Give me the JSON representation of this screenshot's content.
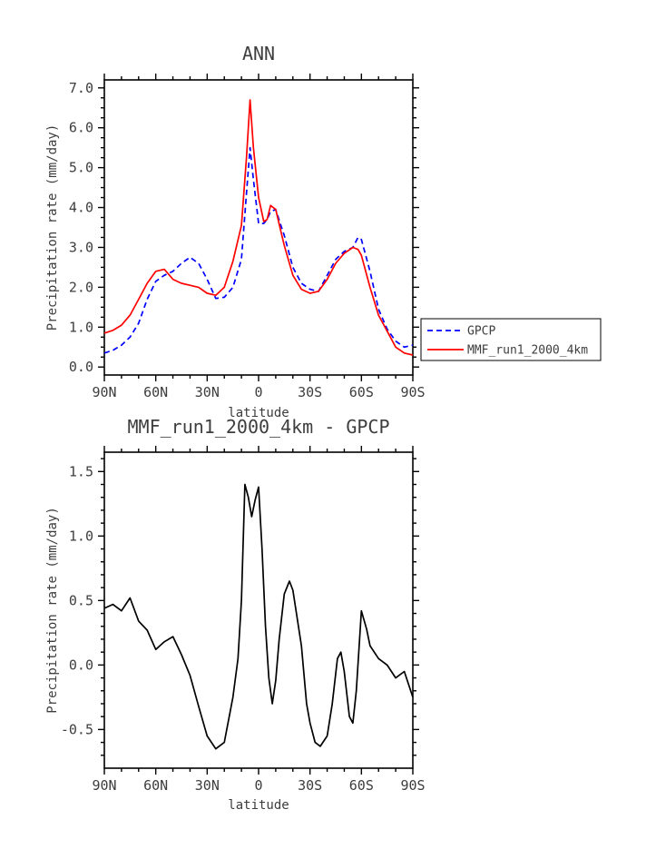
{
  "figure": {
    "background": "#ffffff",
    "text_color": "#3d3d3d",
    "axis_color": "#000000"
  },
  "chart_data": [
    {
      "id": "ann",
      "type": "line",
      "title": "ANN",
      "xlabel": "latitude",
      "ylabel": "Precipitation rate (mm/day)",
      "xlim": [
        90,
        -90
      ],
      "ylim": [
        -0.2,
        7.2
      ],
      "grid": false,
      "x_ticks": [
        {
          "v": 90,
          "label": "90N"
        },
        {
          "v": 60,
          "label": "60N"
        },
        {
          "v": 30,
          "label": "30N"
        },
        {
          "v": 0,
          "label": "0"
        },
        {
          "v": -30,
          "label": "30S"
        },
        {
          "v": -60,
          "label": "60S"
        },
        {
          "v": -90,
          "label": "90S"
        }
      ],
      "y_ticks": [
        {
          "v": 0.0,
          "label": "0.0"
        },
        {
          "v": 1.0,
          "label": "1.0"
        },
        {
          "v": 2.0,
          "label": "2.0"
        },
        {
          "v": 3.0,
          "label": "3.0"
        },
        {
          "v": 4.0,
          "label": "4.0"
        },
        {
          "v": 5.0,
          "label": "5.0"
        },
        {
          "v": 6.0,
          "label": "6.0"
        },
        {
          "v": 7.0,
          "label": "7.0"
        }
      ],
      "x_minor_step": 10,
      "y_minor_step": 0.25,
      "x": [
        90,
        85,
        80,
        75,
        70,
        65,
        60,
        55,
        50,
        45,
        40,
        35,
        30,
        25,
        20,
        15,
        10,
        7,
        5,
        3,
        0,
        -3,
        -5,
        -7,
        -10,
        -13,
        -15,
        -20,
        -25,
        -30,
        -35,
        -40,
        -45,
        -50,
        -55,
        -58,
        -60,
        -65,
        -70,
        -75,
        -80,
        -85,
        -90
      ],
      "series": [
        {
          "name": "GPCP",
          "color": "#0000ff",
          "dash": "6 4",
          "width": 1.7,
          "values": [
            0.35,
            0.42,
            0.55,
            0.75,
            1.1,
            1.7,
            2.15,
            2.3,
            2.4,
            2.6,
            2.75,
            2.6,
            2.2,
            1.72,
            1.75,
            2.0,
            2.7,
            4.4,
            5.5,
            4.7,
            3.6,
            3.6,
            3.7,
            3.9,
            3.95,
            3.55,
            3.3,
            2.5,
            2.1,
            1.95,
            1.9,
            2.3,
            2.7,
            2.9,
            3.0,
            3.25,
            3.2,
            2.4,
            1.45,
            0.95,
            0.65,
            0.5,
            0.55
          ]
        },
        {
          "name": "MMF_run1_2000_4km",
          "color": "#ff0000",
          "dash": "",
          "width": 1.7,
          "values": [
            0.85,
            0.92,
            1.05,
            1.3,
            1.7,
            2.1,
            2.4,
            2.45,
            2.2,
            2.1,
            2.05,
            2.0,
            1.85,
            1.8,
            2.0,
            2.65,
            3.55,
            5.3,
            6.7,
            5.5,
            4.25,
            3.65,
            3.7,
            4.05,
            3.95,
            3.4,
            3.05,
            2.3,
            1.95,
            1.85,
            1.9,
            2.2,
            2.6,
            2.85,
            3.0,
            2.95,
            2.8,
            2.0,
            1.3,
            0.9,
            0.5,
            0.35,
            0.3
          ]
        }
      ],
      "legend": {
        "visible": true,
        "position": "outside-right-bottom",
        "entries": [
          "GPCP",
          "MMF_run1_2000_4km"
        ]
      }
    },
    {
      "id": "diff",
      "type": "line",
      "title": "MMF_run1_2000_4km - GPCP",
      "xlabel": "latitude",
      "ylabel": "Precipitation rate (mm/day)",
      "xlim": [
        90,
        -90
      ],
      "ylim": [
        -0.8,
        1.65
      ],
      "grid": false,
      "x_ticks": [
        {
          "v": 90,
          "label": "90N"
        },
        {
          "v": 60,
          "label": "60N"
        },
        {
          "v": 30,
          "label": "30N"
        },
        {
          "v": 0,
          "label": "0"
        },
        {
          "v": -30,
          "label": "30S"
        },
        {
          "v": -60,
          "label": "60S"
        },
        {
          "v": -90,
          "label": "90S"
        }
      ],
      "y_ticks": [
        {
          "v": -0.5,
          "label": "-0.5"
        },
        {
          "v": 0.0,
          "label": "0.0"
        },
        {
          "v": 0.5,
          "label": "0.5"
        },
        {
          "v": 1.0,
          "label": "1.0"
        },
        {
          "v": 1.5,
          "label": "1.5"
        }
      ],
      "x_minor_step": 10,
      "y_minor_step": 0.1,
      "x": [
        90,
        85,
        80,
        75,
        70,
        65,
        60,
        55,
        50,
        45,
        40,
        35,
        30,
        25,
        20,
        15,
        12,
        10,
        8,
        6,
        4,
        2,
        0,
        -2,
        -4,
        -6,
        -8,
        -10,
        -12,
        -15,
        -18,
        -20,
        -25,
        -28,
        -30,
        -33,
        -36,
        -40,
        -43,
        -46,
        -48,
        -50,
        -53,
        -55,
        -57,
        -60,
        -63,
        -65,
        -70,
        -75,
        -80,
        -85,
        -90
      ],
      "series": [
        {
          "name": "MMF_run1_2000_4km - GPCP",
          "color": "#000000",
          "dash": "",
          "width": 1.7,
          "values": [
            0.44,
            0.47,
            0.42,
            0.52,
            0.34,
            0.27,
            0.12,
            0.18,
            0.22,
            0.08,
            -0.08,
            -0.32,
            -0.55,
            -0.65,
            -0.6,
            -0.25,
            0.05,
            0.5,
            1.4,
            1.3,
            1.15,
            1.28,
            1.38,
            0.9,
            0.3,
            -0.1,
            -0.3,
            -0.12,
            0.2,
            0.55,
            0.65,
            0.58,
            0.15,
            -0.3,
            -0.45,
            -0.6,
            -0.63,
            -0.55,
            -0.3,
            0.05,
            0.1,
            -0.05,
            -0.4,
            -0.45,
            -0.2,
            0.42,
            0.28,
            0.15,
            0.05,
            0.0,
            -0.1,
            -0.05,
            -0.25
          ]
        }
      ],
      "legend": {
        "visible": false,
        "entries": []
      }
    }
  ]
}
